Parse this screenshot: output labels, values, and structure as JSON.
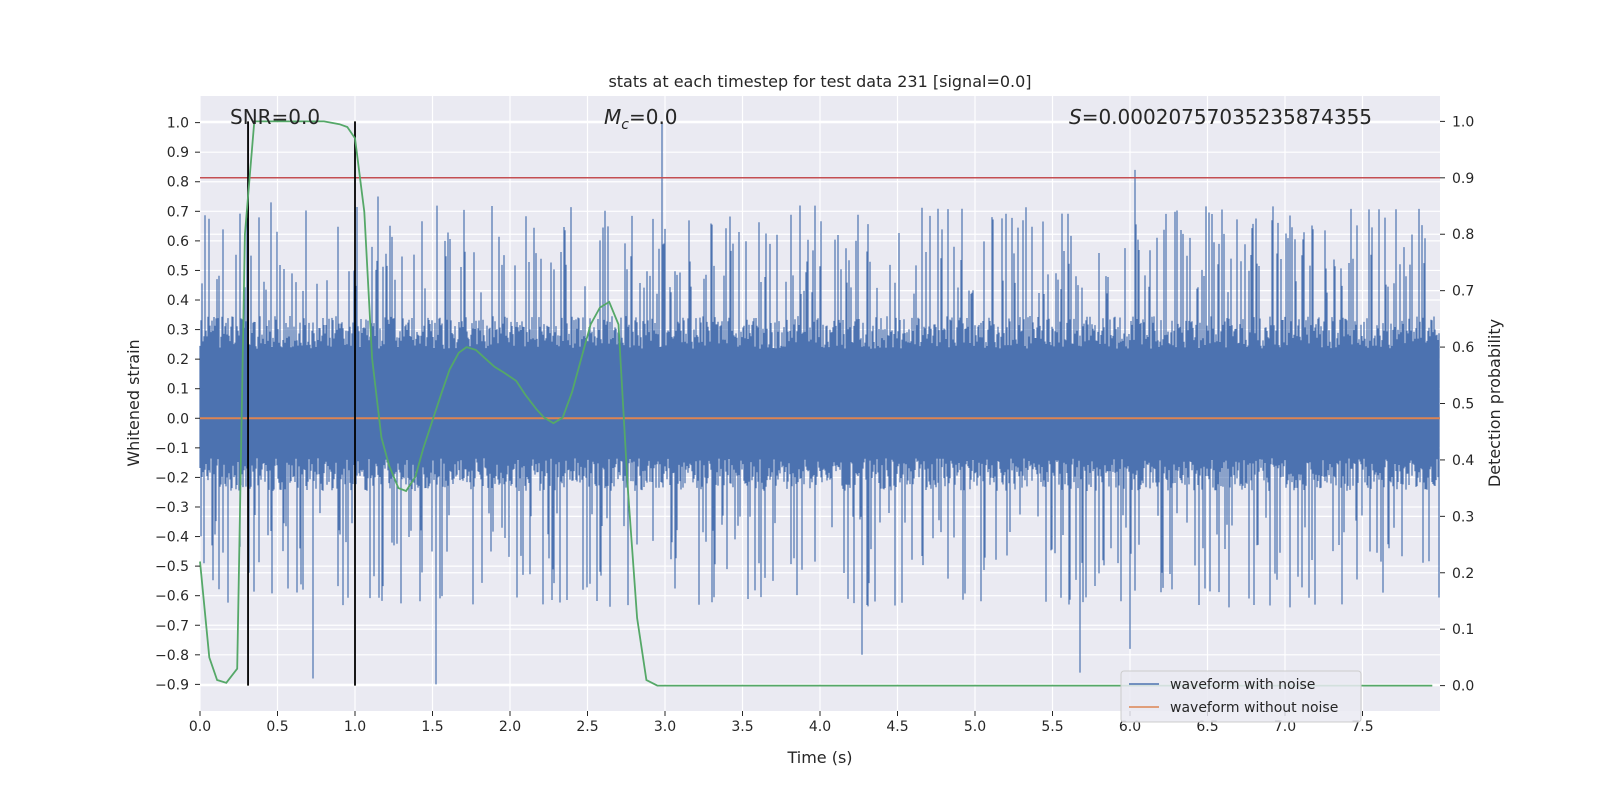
{
  "chart_data": {
    "type": "line",
    "title": "stats at each timestep for test data 231 [signal=0.0]",
    "xlabel": "Time (s)",
    "ylabel_left": "Whitened strain",
    "ylabel_right": "Detection probability",
    "xlim": [
      0.0,
      8.0
    ],
    "ylim_left": [
      -0.99,
      1.09
    ],
    "ylim_right": [
      -0.045,
      1.045
    ],
    "x_ticks": [
      "0.0",
      "0.5",
      "1.0",
      "1.5",
      "2.0",
      "2.5",
      "3.0",
      "3.5",
      "4.0",
      "4.5",
      "5.0",
      "5.5",
      "6.0",
      "6.5",
      "7.0",
      "7.5"
    ],
    "y_ticks_left": [
      "1.0",
      "0.9",
      "0.8",
      "0.7",
      "0.6",
      "0.5",
      "0.4",
      "0.3",
      "0.2",
      "0.1",
      "0.0",
      "−0.1",
      "−0.2",
      "−0.3",
      "−0.4",
      "−0.5",
      "−0.6",
      "−0.7",
      "−0.8",
      "−0.9"
    ],
    "y_ticks_right": [
      "1.0",
      "0.9",
      "0.8",
      "0.7",
      "0.6",
      "0.5",
      "0.4",
      "0.3",
      "0.2",
      "0.1",
      "0.0"
    ],
    "annotations": {
      "snr": "SNR=0.0",
      "mc_symbol": "M",
      "mc_sub": "c",
      "mc_value": "=0.0",
      "s_symbol": "S",
      "s_value": "=0.00020757035235874355"
    },
    "legend": [
      {
        "label": "waveform with noise",
        "color": "#4c72b0"
      },
      {
        "label": "waveform without noise",
        "color": "#dd8452"
      }
    ],
    "threshold": {
      "value_right": 0.9,
      "color": "#c44e52"
    },
    "vertical_markers_x": [
      0.31,
      1.0
    ],
    "noise_series": {
      "name": "waveform with noise",
      "color": "#4c72b0",
      "x_range": [
        0.0,
        8.0
      ],
      "typical_band": [
        -0.32,
        0.42
      ],
      "notable_peaks": [
        {
          "x": 2.98,
          "y": 1.0
        },
        {
          "x": 6.03,
          "y": 0.84
        },
        {
          "x": 1.15,
          "y": 0.75
        },
        {
          "x": 0.46,
          "y": 0.73
        },
        {
          "x": 1.52,
          "y": -0.9
        },
        {
          "x": 0.73,
          "y": -0.88
        },
        {
          "x": 5.68,
          "y": -0.86
        },
        {
          "x": 4.27,
          "y": -0.8
        },
        {
          "x": 6.0,
          "y": -0.78
        }
      ]
    },
    "clean_series": {
      "name": "waveform without noise",
      "color": "#dd8452",
      "y": 0.0
    },
    "probability_series": {
      "name": "Detection probability",
      "color": "#55a868",
      "x": [
        0.0,
        0.06,
        0.11,
        0.17,
        0.24,
        0.29,
        0.35,
        0.4,
        0.5,
        0.6,
        0.7,
        0.8,
        0.9,
        0.95,
        1.0,
        1.06,
        1.11,
        1.17,
        1.22,
        1.28,
        1.33,
        1.39,
        1.44,
        1.5,
        1.56,
        1.61,
        1.67,
        1.72,
        1.78,
        1.84,
        1.9,
        1.96,
        2.04,
        2.1,
        2.17,
        2.22,
        2.28,
        2.34,
        2.4,
        2.46,
        2.52,
        2.58,
        2.64,
        2.7,
        2.76,
        2.82,
        2.88,
        2.95,
        3.02,
        3.5,
        4.5,
        5.5,
        6.5,
        7.5,
        7.95
      ],
      "y": [
        0.22,
        0.05,
        0.01,
        0.005,
        0.03,
        0.8,
        1.0,
        1.0,
        1.0,
        1.0,
        1.0,
        1.0,
        0.995,
        0.99,
        0.97,
        0.84,
        0.58,
        0.44,
        0.39,
        0.35,
        0.345,
        0.37,
        0.42,
        0.47,
        0.52,
        0.56,
        0.59,
        0.6,
        0.595,
        0.58,
        0.565,
        0.555,
        0.54,
        0.515,
        0.49,
        0.475,
        0.465,
        0.475,
        0.52,
        0.58,
        0.64,
        0.67,
        0.68,
        0.64,
        0.35,
        0.12,
        0.01,
        0.0,
        0.0,
        0.0,
        0.0,
        0.0,
        0.0,
        0.0,
        0.0
      ]
    }
  }
}
